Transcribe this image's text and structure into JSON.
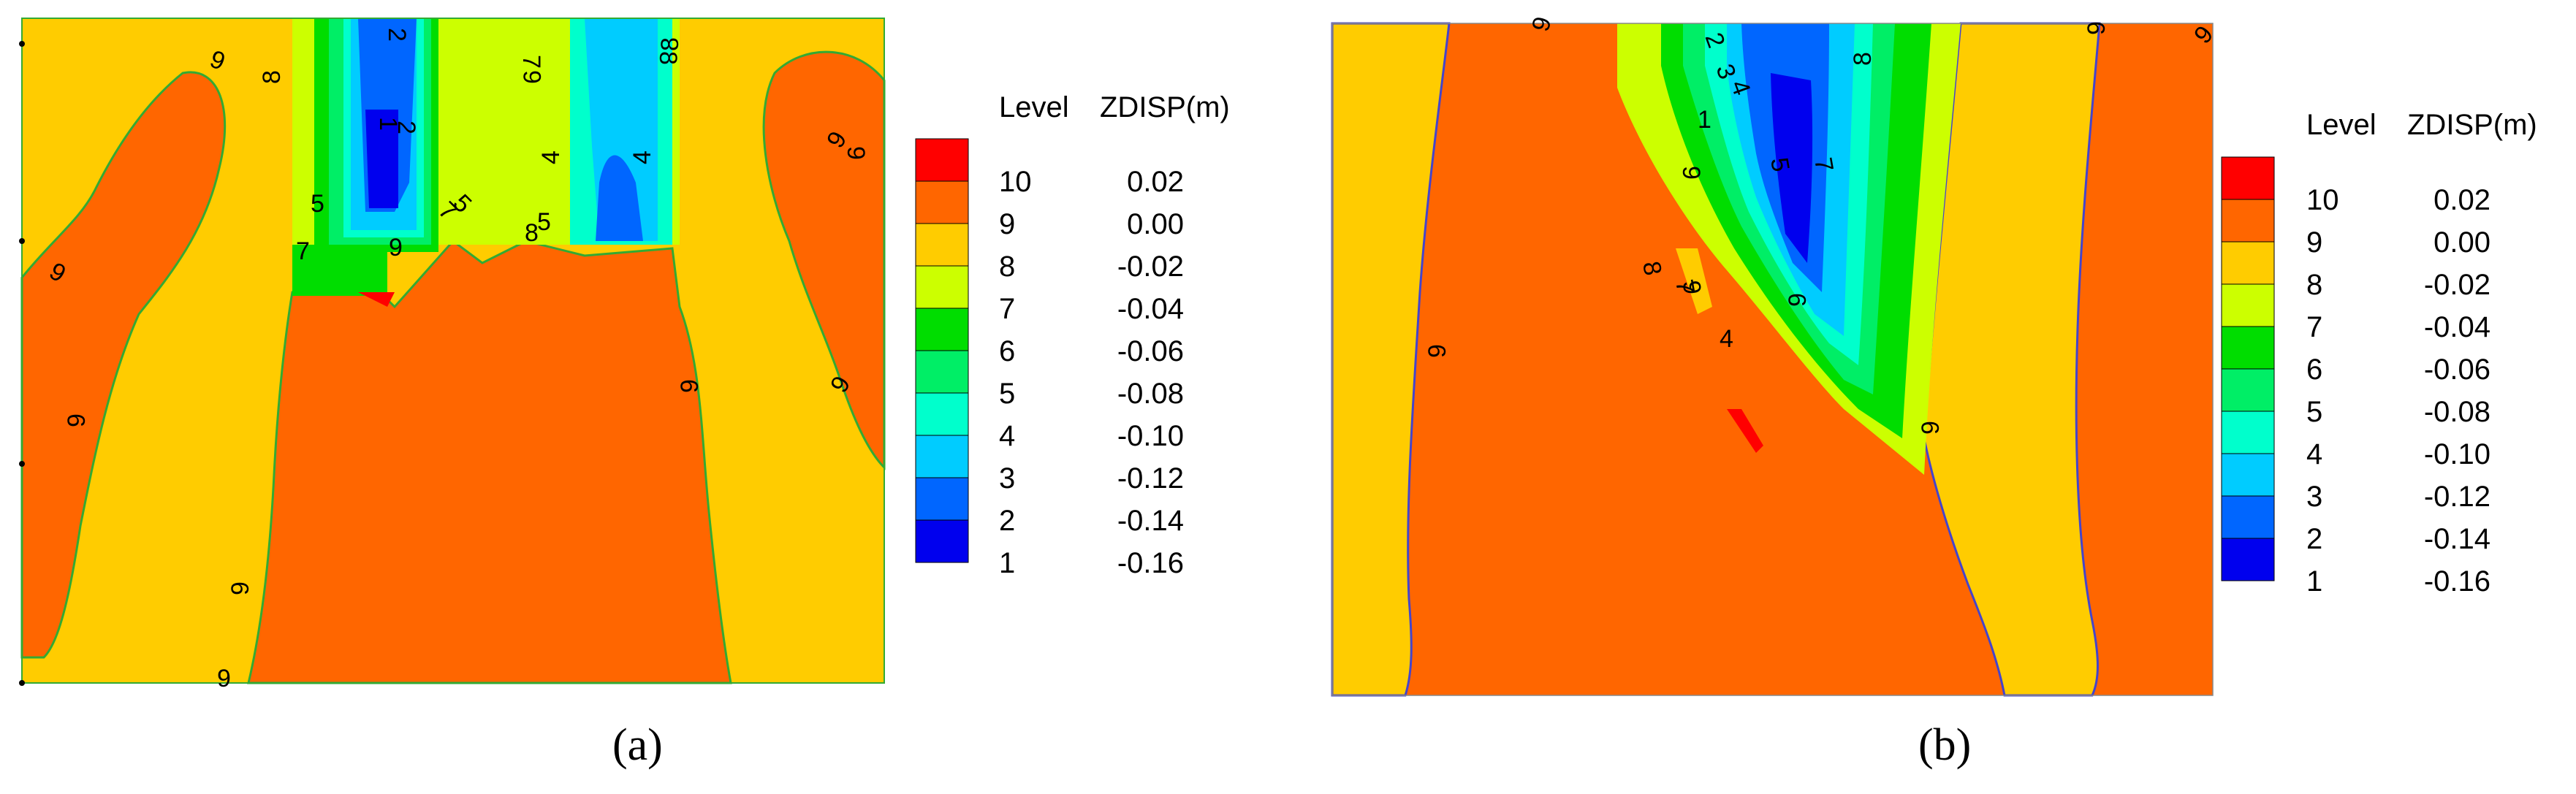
{
  "chart_data": [
    {
      "type": "contour",
      "subplot_label": "(a)",
      "legend": {
        "header_level": "Level",
        "header_value": "ZDISP(m)",
        "levels": [
          {
            "level": "10",
            "value": "0.02",
            "color": "#ff0000"
          },
          {
            "level": "9",
            "value": "0.00",
            "color": "#ff6600"
          },
          {
            "level": "8",
            "value": "-0.02",
            "color": "#ffcc00"
          },
          {
            "level": "7",
            "value": "-0.04",
            "color": "#ccff00"
          },
          {
            "level": "6",
            "value": "-0.06",
            "color": "#00dd00"
          },
          {
            "level": "5",
            "value": "-0.08",
            "color": "#00ee66"
          },
          {
            "level": "4",
            "value": "-0.10",
            "color": "#00ffcc"
          },
          {
            "level": "3",
            "value": "-0.12",
            "color": "#00ccff"
          },
          {
            "level": "2",
            "value": "-0.14",
            "color": "#0066ff"
          },
          {
            "level": "1",
            "value": "-0.16",
            "color": "#0000ee"
          }
        ]
      },
      "contour_labels": [
        "9",
        "8",
        "2",
        "7",
        "6",
        "8",
        "8",
        "9",
        "4",
        "4",
        "1",
        "2",
        "5",
        "7",
        "5",
        "7",
        "9",
        "8",
        "5",
        "9",
        "9",
        "9",
        "9",
        "9",
        "9",
        "9"
      ]
    },
    {
      "type": "contour",
      "subplot_label": "(b)",
      "legend": {
        "header_level": "Level",
        "header_value": "ZDISP(m)",
        "levels": [
          {
            "level": "10",
            "value": "0.02",
            "color": "#ff0000"
          },
          {
            "level": "9",
            "value": "0.00",
            "color": "#ff6600"
          },
          {
            "level": "8",
            "value": "-0.02",
            "color": "#ffcc00"
          },
          {
            "level": "7",
            "value": "-0.04",
            "color": "#ccff00"
          },
          {
            "level": "6",
            "value": "-0.06",
            "color": "#00dd00"
          },
          {
            "level": "5",
            "value": "-0.08",
            "color": "#00ee66"
          },
          {
            "level": "4",
            "value": "-0.10",
            "color": "#00ffcc"
          },
          {
            "level": "3",
            "value": "-0.12",
            "color": "#00ccff"
          },
          {
            "level": "2",
            "value": "-0.14",
            "color": "#0066ff"
          },
          {
            "level": "1",
            "value": "-0.16",
            "color": "#0000ee"
          }
        ]
      },
      "contour_labels": [
        "9",
        "2",
        "3",
        "4",
        "1",
        "8",
        "5",
        "7",
        "9",
        "9",
        "9",
        "9",
        "8",
        "7",
        "4",
        "9",
        "9",
        "9"
      ]
    }
  ]
}
